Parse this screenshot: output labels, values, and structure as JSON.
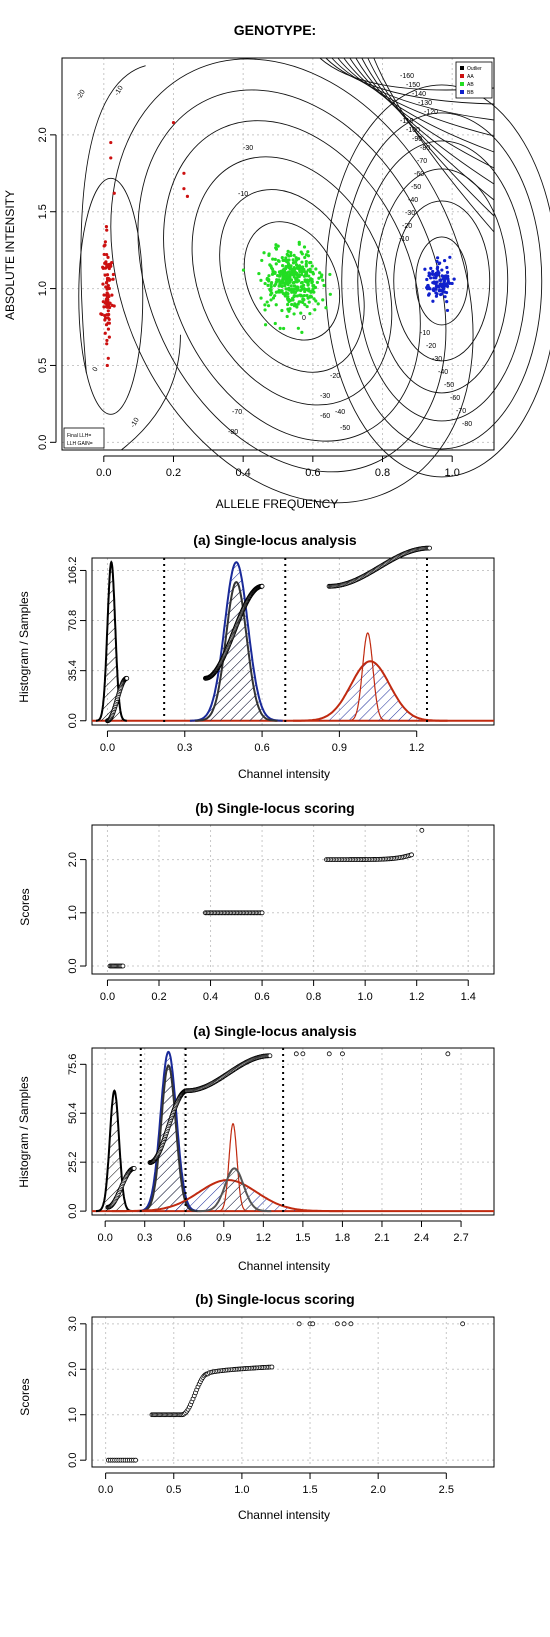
{
  "chart_data": [
    {
      "type": "scatter",
      "title": "GENOTYPE:",
      "xlabel": "ALLELE FREQUENCY",
      "ylabel": "ABSOLUTE INTENSITY",
      "xlim": [
        -0.12,
        1.12
      ],
      "ylim": [
        -0.05,
        2.5
      ],
      "x_ticks": [
        "0.0",
        "0.2",
        "0.4",
        "0.6",
        "0.8",
        "1.0"
      ],
      "y_ticks": [
        "0.0",
        "0.5",
        "1.0",
        "1.5",
        "2.0"
      ],
      "grid": true,
      "legend": {
        "position": "top-right",
        "entries": [
          {
            "name": "Outlier",
            "color": "#000000"
          },
          {
            "name": "AA",
            "color": "#cc1010"
          },
          {
            "name": "AB",
            "color": "#22dd22"
          },
          {
            "name": "BB",
            "color": "#1020cc"
          }
        ]
      },
      "annotation_box": {
        "position": "bottom-left",
        "lines": [
          "Final LLH=",
          "LLH GAIN="
        ]
      },
      "contour_labels_left": [
        "0",
        "-10",
        "-20",
        "-10"
      ],
      "contour_labels_center": [
        "-10",
        "-20",
        "-30",
        "-40",
        "-50",
        "-60",
        "-70",
        "-80",
        "0",
        "-30"
      ],
      "contour_labels_right": [
        "-160",
        "-150",
        "-140",
        "-130",
        "-120",
        "-110",
        "-100",
        "-90",
        "-80",
        "-70",
        "-60",
        "-50",
        "-40",
        "-30",
        "-20",
        "-10",
        "-10",
        "-20",
        "-30",
        "-40",
        "-50",
        "-60",
        "-70",
        "-80"
      ],
      "clusters": [
        {
          "name": "AA",
          "color": "#cc1010",
          "center": [
            0.01,
            1.0
          ],
          "spread": [
            0.007,
            0.18
          ],
          "n": 90,
          "extra_points": [
            [
              0.02,
              1.95
            ],
            [
              0.02,
              1.85
            ],
            [
              0.03,
              1.62
            ],
            [
              0.24,
              1.6
            ],
            [
              0.23,
              1.65
            ],
            [
              0.2,
              2.08
            ],
            [
              0.23,
              1.75
            ],
            [
              0.01,
              0.5
            ]
          ]
        },
        {
          "name": "AB",
          "color": "#22dd22",
          "center": [
            0.54,
            1.05
          ],
          "spread": [
            0.04,
            0.1
          ],
          "n": 360
        },
        {
          "name": "BB",
          "color": "#1020cc",
          "center": [
            0.96,
            1.05
          ],
          "spread": [
            0.018,
            0.06
          ],
          "n": 110
        }
      ]
    },
    {
      "type": "area",
      "title": "(a) Single-locus analysis",
      "xlabel": "Channel intensity",
      "ylabel": "Histogram / Samples",
      "xlim": [
        -0.06,
        1.5
      ],
      "ylim": [
        -3,
        115
      ],
      "x_ticks": [
        "0.0",
        "0.3",
        "0.6",
        "0.9",
        "1.2"
      ],
      "y_ticks": [
        "0.0",
        "35.4",
        "70.8",
        "106.2"
      ],
      "grid": true,
      "thresholds": [
        0.22,
        0.69,
        1.24
      ],
      "components": [
        {
          "color": "#000000",
          "mean": 0.015,
          "sd": 0.015,
          "height": 112,
          "hatched": true,
          "hatch_color": "#000000"
        },
        {
          "color": "#1a2a99",
          "mean": 0.5,
          "sd": 0.045,
          "height": 112,
          "hatched": true,
          "hatch_color": "#1a2a99"
        },
        {
          "color": "#333333",
          "mean": 0.5,
          "sd": 0.04,
          "height": 98,
          "hatched": true,
          "hatch_color": "#333333"
        },
        {
          "color": "#c02a10",
          "mean": 1.02,
          "sd": 0.075,
          "height": 42,
          "hatched": true,
          "hatch_color": "#1a2a99"
        },
        {
          "color": "#c02a10",
          "mean": 1.01,
          "sd": 0.02,
          "height": 62,
          "hatched": false
        }
      ],
      "sample_segments": [
        {
          "x": [
            0.0,
            0.075
          ],
          "y": [
            0,
            30
          ],
          "n": 40
        },
        {
          "x": [
            0.38,
            0.6
          ],
          "y": [
            30,
            95
          ],
          "n": 130
        },
        {
          "x": [
            0.86,
            1.25
          ],
          "y": [
            95,
            122
          ],
          "n": 90
        }
      ]
    },
    {
      "type": "scatter",
      "title": "(b) Single-locus scoring",
      "xlabel": "",
      "ylabel": "Scores",
      "xlim": [
        -0.06,
        1.5
      ],
      "ylim": [
        -0.15,
        2.65
      ],
      "x_ticks": [
        "0.0",
        "0.2",
        "0.4",
        "0.6",
        "0.8",
        "1.0",
        "1.2",
        "1.4"
      ],
      "y_ticks": [
        "0.0",
        "1.0",
        "2.0"
      ],
      "grid": true,
      "groups": [
        {
          "score": 0,
          "x": [
            0.01,
            0.06
          ],
          "n": 12
        },
        {
          "score": 1,
          "x": [
            0.38,
            0.6
          ],
          "n": 40
        },
        {
          "score": 2,
          "x": [
            0.85,
            1.18
          ],
          "n": 55
        }
      ],
      "outliers": [
        [
          1.22,
          2.55
        ]
      ]
    },
    {
      "type": "area",
      "title": "(a) Single-locus analysis",
      "xlabel": "Channel intensity",
      "ylabel": "Histogram / Samples",
      "xlim": [
        -0.1,
        2.95
      ],
      "ylim": [
        -2,
        84
      ],
      "x_ticks": [
        "0.0",
        "0.3",
        "0.6",
        "0.9",
        "1.2",
        "1.5",
        "1.8",
        "2.1",
        "2.4",
        "2.7"
      ],
      "y_ticks": [
        "0.0",
        "25.2",
        "50.4",
        "75.6"
      ],
      "grid": true,
      "thresholds": [
        0.27,
        0.61,
        1.35
      ],
      "components": [
        {
          "color": "#000000",
          "mean": 0.07,
          "sd": 0.035,
          "height": 62,
          "hatched": true,
          "hatch_color": "#000000"
        },
        {
          "color": "#1a2a99",
          "mean": 0.48,
          "sd": 0.06,
          "height": 82,
          "hatched": true,
          "hatch_color": "#1a2a99"
        },
        {
          "color": "#333333",
          "mean": 0.48,
          "sd": 0.055,
          "height": 75,
          "hatched": true,
          "hatch_color": "#333333"
        },
        {
          "color": "#c02a10",
          "mean": 0.93,
          "sd": 0.22,
          "height": 16,
          "hatched": true,
          "hatch_color": "#1a2a99"
        },
        {
          "color": "#c02a10",
          "mean": 0.97,
          "sd": 0.03,
          "height": 45,
          "hatched": false
        },
        {
          "color": "#555555",
          "mean": 0.98,
          "sd": 0.07,
          "height": 22,
          "hatched": true,
          "hatch_color": "#444444"
        }
      ],
      "sample_segments": [
        {
          "x": [
            0.02,
            0.22
          ],
          "y": [
            2,
            22
          ],
          "n": 40
        },
        {
          "x": [
            0.34,
            0.62
          ],
          "y": [
            25,
            62
          ],
          "n": 70
        },
        {
          "x": [
            0.62,
            1.25
          ],
          "y": [
            62,
            80
          ],
          "n": 80
        }
      ],
      "outliers": [
        [
          1.45,
          81
        ],
        [
          1.5,
          81
        ],
        [
          1.7,
          81
        ],
        [
          1.8,
          81
        ],
        [
          2.6,
          81
        ]
      ]
    },
    {
      "type": "scatter",
      "title": "(b) Single-locus scoring",
      "xlabel": "Channel intensity",
      "ylabel": "Scores",
      "xlim": [
        -0.1,
        2.85
      ],
      "ylim": [
        -0.15,
        3.15
      ],
      "x_ticks": [
        "0.0",
        "0.5",
        "1.0",
        "1.5",
        "2.0",
        "2.5"
      ],
      "y_ticks": [
        "0.0",
        "1.0",
        "2.0",
        "3.0"
      ],
      "grid": true,
      "curve_segments": [
        {
          "x": [
            0.02,
            0.22
          ],
          "y": [
            0,
            0
          ],
          "n": 14
        },
        {
          "x": [
            0.34,
            0.56
          ],
          "y": [
            1.0,
            1.0
          ],
          "n": 25
        },
        {
          "x": [
            0.56,
            0.75
          ],
          "y": [
            1.0,
            1.9
          ],
          "n": 22
        },
        {
          "x": [
            0.75,
            1.22
          ],
          "y": [
            1.9,
            2.05
          ],
          "n": 40
        }
      ],
      "outliers": [
        [
          1.42,
          3.0
        ],
        [
          1.5,
          3.0
        ],
        [
          1.52,
          3.0
        ],
        [
          1.7,
          3.0
        ],
        [
          1.75,
          3.0
        ],
        [
          1.8,
          3.0
        ],
        [
          2.62,
          3.0
        ]
      ]
    }
  ]
}
